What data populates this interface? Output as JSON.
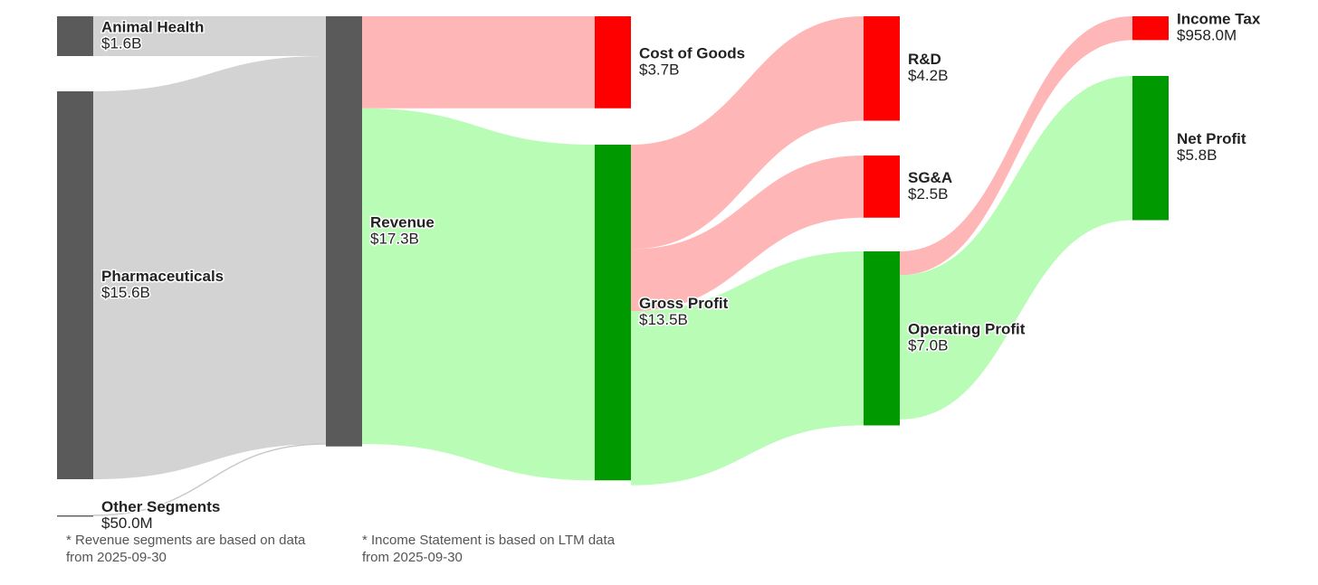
{
  "chart_data": {
    "type": "sankey",
    "nodes": [
      {
        "name": "Animal Health",
        "value": 1.6,
        "value_label": "$1.6B",
        "color": "#5a5a5a",
        "link_color": "#d3d3d3"
      },
      {
        "name": "Pharmaceuticals",
        "value": 15.6,
        "value_label": "$15.6B",
        "color": "#5a5a5a",
        "link_color": "#d3d3d3"
      },
      {
        "name": "Other Segments",
        "value": 0.05,
        "value_label": "$50.0M",
        "color": "#5a5a5a",
        "link_color": "#d3d3d3"
      },
      {
        "name": "Revenue",
        "value": 17.3,
        "value_label": "$17.3B",
        "color": "#5a5a5a",
        "link_color": "#d3d3d3"
      },
      {
        "name": "Cost of Goods",
        "value": 3.7,
        "value_label": "$3.7B",
        "color": "#ff0000",
        "link_color": "#ffb6b6"
      },
      {
        "name": "Gross Profit",
        "value": 13.5,
        "value_label": "$13.5B",
        "color": "#009900",
        "link_color": "#b8fcb5"
      },
      {
        "name": "R&D",
        "value": 4.2,
        "value_label": "$4.2B",
        "color": "#ff0000",
        "link_color": "#ffb6b6"
      },
      {
        "name": "SG&A",
        "value": 2.5,
        "value_label": "$2.5B",
        "color": "#ff0000",
        "link_color": "#ffb6b6"
      },
      {
        "name": "Operating Profit",
        "value": 7.0,
        "value_label": "$7.0B",
        "color": "#009900",
        "link_color": "#b8fcb5"
      },
      {
        "name": "Income Tax",
        "value": 0.958,
        "value_label": "$958.0M",
        "color": "#ff0000",
        "link_color": "#ffb6b6"
      },
      {
        "name": "Net Profit",
        "value": 5.8,
        "value_label": "$5.8B",
        "color": "#009900",
        "link_color": "#b8fcb5"
      }
    ],
    "links": [
      {
        "source": 0,
        "target": 3
      },
      {
        "source": 1,
        "target": 3
      },
      {
        "source": 2,
        "target": 3
      },
      {
        "source": 3,
        "target": 4
      },
      {
        "source": 3,
        "target": 5
      },
      {
        "source": 5,
        "target": 6
      },
      {
        "source": 5,
        "target": 7
      },
      {
        "source": 5,
        "target": 8
      },
      {
        "source": 8,
        "target": 9
      },
      {
        "source": 8,
        "target": 10
      }
    ],
    "notes": [
      [
        "* Revenue segments are based on data",
        "from 2025-09-30"
      ],
      [
        "* Income Statement is based on LTM data",
        "from 2025-09-30"
      ]
    ]
  }
}
